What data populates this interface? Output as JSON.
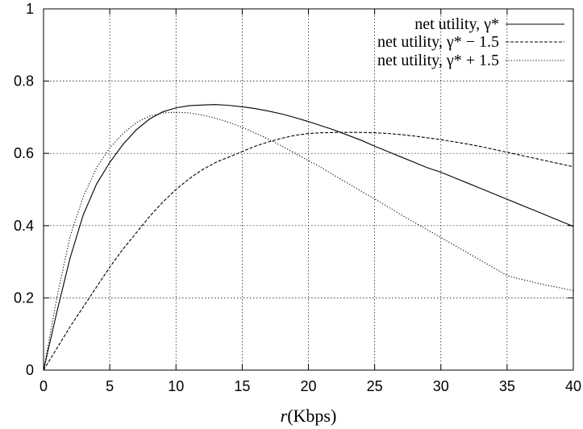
{
  "chart_data": {
    "type": "line",
    "title": "",
    "xlabel": "r (Kbps)",
    "xlabel_parts": {
      "var": "r",
      "unit": "(Kbps)"
    },
    "ylabel": "",
    "xlim": [
      0,
      40
    ],
    "ylim": [
      0,
      1
    ],
    "xticks": [
      0,
      5,
      10,
      15,
      20,
      25,
      30,
      35,
      40
    ],
    "xtick_labels": [
      "0",
      "5",
      "10",
      "15",
      "20",
      "25",
      "30",
      "35",
      "40"
    ],
    "yticks": [
      0,
      0.2,
      0.4,
      0.6,
      0.8,
      1
    ],
    "ytick_labels": [
      "0",
      "0.2",
      "0.4",
      "0.6",
      "0.8",
      "1"
    ],
    "grid": true,
    "legend_position": "top-right",
    "x": [
      0,
      1,
      2,
      3,
      4,
      5,
      6,
      7,
      8,
      9,
      10,
      11,
      12,
      13,
      14,
      15,
      16,
      17,
      18,
      19,
      20,
      21,
      22,
      23,
      24,
      25,
      26,
      27,
      28,
      29,
      30,
      31,
      32,
      33,
      34,
      35,
      36,
      37,
      38,
      39,
      40
    ],
    "series": [
      {
        "name": "net utility, γ*",
        "style": "solid",
        "values": [
          0,
          0.16,
          0.31,
          0.43,
          0.515,
          0.575,
          0.625,
          0.665,
          0.695,
          0.715,
          0.726,
          0.732,
          0.734,
          0.735,
          0.733,
          0.729,
          0.724,
          0.717,
          0.709,
          0.699,
          0.688,
          0.676,
          0.664,
          0.65,
          0.636,
          0.62,
          0.605,
          0.59,
          0.575,
          0.56,
          0.548,
          0.533,
          0.518,
          0.503,
          0.488,
          0.473,
          0.458,
          0.443,
          0.428,
          0.413,
          0.398
        ]
      },
      {
        "name": "net utility, γ* − 1.5",
        "style": "dashed",
        "values": [
          0,
          0.06,
          0.12,
          0.175,
          0.23,
          0.285,
          0.335,
          0.38,
          0.425,
          0.465,
          0.5,
          0.53,
          0.555,
          0.575,
          0.59,
          0.605,
          0.62,
          0.632,
          0.642,
          0.65,
          0.655,
          0.657,
          0.658,
          0.658,
          0.658,
          0.657,
          0.655,
          0.652,
          0.648,
          0.643,
          0.638,
          0.632,
          0.626,
          0.619,
          0.611,
          0.603,
          0.595,
          0.587,
          0.579,
          0.571,
          0.563
        ]
      },
      {
        "name": "net utility, γ* + 1.5",
        "style": "dotted",
        "values": [
          0,
          0.2,
          0.37,
          0.48,
          0.56,
          0.615,
          0.655,
          0.685,
          0.703,
          0.712,
          0.714,
          0.712,
          0.706,
          0.697,
          0.686,
          0.672,
          0.656,
          0.639,
          0.62,
          0.6,
          0.58,
          0.56,
          0.538,
          0.517,
          0.495,
          0.474,
          0.452,
          0.43,
          0.409,
          0.388,
          0.367,
          0.346,
          0.325,
          0.304,
          0.283,
          0.262,
          0.252,
          0.243,
          0.235,
          0.228,
          0.22
        ]
      }
    ]
  }
}
